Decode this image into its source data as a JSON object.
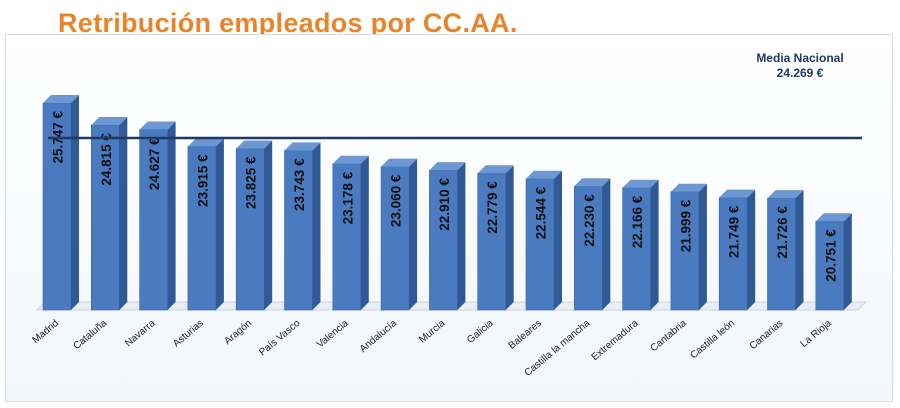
{
  "chart_data": {
    "type": "bar",
    "title": "Retribución empleados por CC.AA.",
    "categories": [
      "Madrid",
      "Cataluña",
      "Navarra",
      "Asturias",
      "Aragón",
      "País Vasco",
      "Valencia",
      "Andalucía",
      "Murcia",
      "Galicia",
      "Baleares",
      "Castilla la mancha",
      "Extremadura",
      "Cantabria",
      "Castilla león",
      "Canarias",
      "La Rioja"
    ],
    "values": [
      25747,
      24815,
      24627,
      23915,
      23825,
      23743,
      23178,
      23060,
      22910,
      22779,
      22544,
      22230,
      22166,
      21999,
      21749,
      21726,
      20751
    ],
    "value_labels": [
      "25.747 €",
      "24.815 €",
      "24.627 €",
      "23.915 €",
      "23.825 €",
      "23.743 €",
      "23.178 €",
      "23.060 €",
      "22.910 €",
      "22.779 €",
      "22.544 €",
      "22.230 €",
      "22.166 €",
      "21.999 €",
      "21.749 €",
      "21.726 €",
      "20.751 €"
    ],
    "reference_line": {
      "label": "Media Nacional",
      "value_label": "24.269 €",
      "value": 24269
    },
    "ylim": [
      17000,
      26000
    ],
    "grid": false,
    "legend": "none",
    "colors": {
      "bar": "#4a7ac0",
      "bar_side": "#2f5a96",
      "bar_top": "#6d97d3",
      "line": "#1f3864",
      "title": "#e8852a"
    }
  }
}
